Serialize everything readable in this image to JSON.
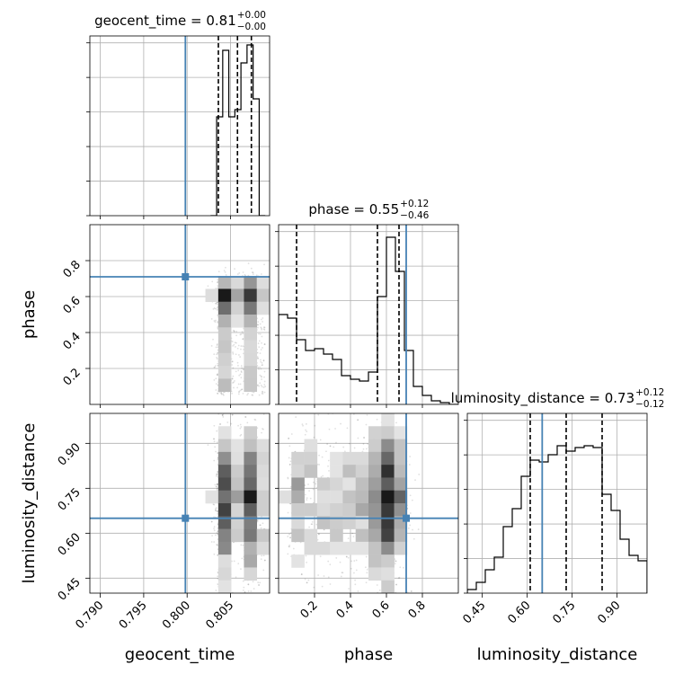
{
  "chart_data": {
    "type": "scatter",
    "variables": [
      "geocent_time",
      "phase",
      "luminosity_distance"
    ],
    "titles": {
      "geocent_time": {
        "label": "geocent_time = 0.81",
        "sup": "+0.00",
        "sub": "−0.00"
      },
      "phase": {
        "label": "phase = 0.55",
        "sup": "+0.12",
        "sub": "−0.46"
      },
      "luminosity_distance": {
        "label": "luminosity_distance = 0.73",
        "sup": "+0.12",
        "sub": "−0.12"
      }
    },
    "axis_labels": {
      "geocent_time": "geocent_time",
      "phase": "phase",
      "luminosity_distance": "luminosity_distance"
    },
    "ranges": {
      "geocent_time": [
        0.7888,
        0.8095
      ],
      "phase": [
        0.0,
        1.0
      ],
      "luminosity_distance": [
        0.4,
        1.0
      ]
    },
    "ticks": {
      "geocent_time": [
        "0.790",
        "0.795",
        "0.800",
        "0.805"
      ],
      "phase": [
        "0.2",
        "0.4",
        "0.6",
        "0.8"
      ],
      "luminosity_distance": [
        "0.45",
        "0.60",
        "0.75",
        "0.90"
      ]
    },
    "truths": {
      "geocent_time": 0.7998,
      "phase": 0.71,
      "luminosity_distance": 0.65
    },
    "quantiles": {
      "geocent_time": [
        0.8036,
        0.8058,
        0.8074
      ],
      "phase": [
        0.1,
        0.55,
        0.67
      ],
      "luminosity_distance": [
        0.61,
        0.73,
        0.85
      ]
    },
    "histograms": {
      "geocent_time": {
        "edges": [
          0.8027,
          0.8034,
          0.8041,
          0.8048,
          0.8055,
          0.8062,
          0.8069,
          0.8076,
          0.8083,
          0.809
        ],
        "counts": [
          0.0,
          0.55,
          0.92,
          0.55,
          0.59,
          0.85,
          0.95,
          0.65,
          0.0
        ]
      },
      "phase": {
        "edges": [
          0.0,
          0.05,
          0.1,
          0.15,
          0.2,
          0.25,
          0.3,
          0.35,
          0.4,
          0.45,
          0.5,
          0.55,
          0.6,
          0.65,
          0.7,
          0.75,
          0.8,
          0.85,
          0.9,
          0.95,
          1.0
        ],
        "counts": [
          0.5,
          0.48,
          0.36,
          0.3,
          0.31,
          0.28,
          0.25,
          0.16,
          0.14,
          0.13,
          0.18,
          0.6,
          0.93,
          0.74,
          0.3,
          0.1,
          0.05,
          0.02,
          0.01,
          0.0
        ]
      },
      "luminosity_distance": {
        "edges": [
          0.4,
          0.43,
          0.46,
          0.49,
          0.52,
          0.55,
          0.58,
          0.61,
          0.64,
          0.67,
          0.7,
          0.73,
          0.76,
          0.79,
          0.82,
          0.85,
          0.88,
          0.91,
          0.94,
          0.97,
          1.0
        ],
        "counts": [
          0.02,
          0.06,
          0.13,
          0.2,
          0.37,
          0.47,
          0.65,
          0.74,
          0.73,
          0.77,
          0.82,
          0.79,
          0.81,
          0.82,
          0.81,
          0.55,
          0.46,
          0.3,
          0.21,
          0.18
        ]
      }
    },
    "grid": true
  }
}
